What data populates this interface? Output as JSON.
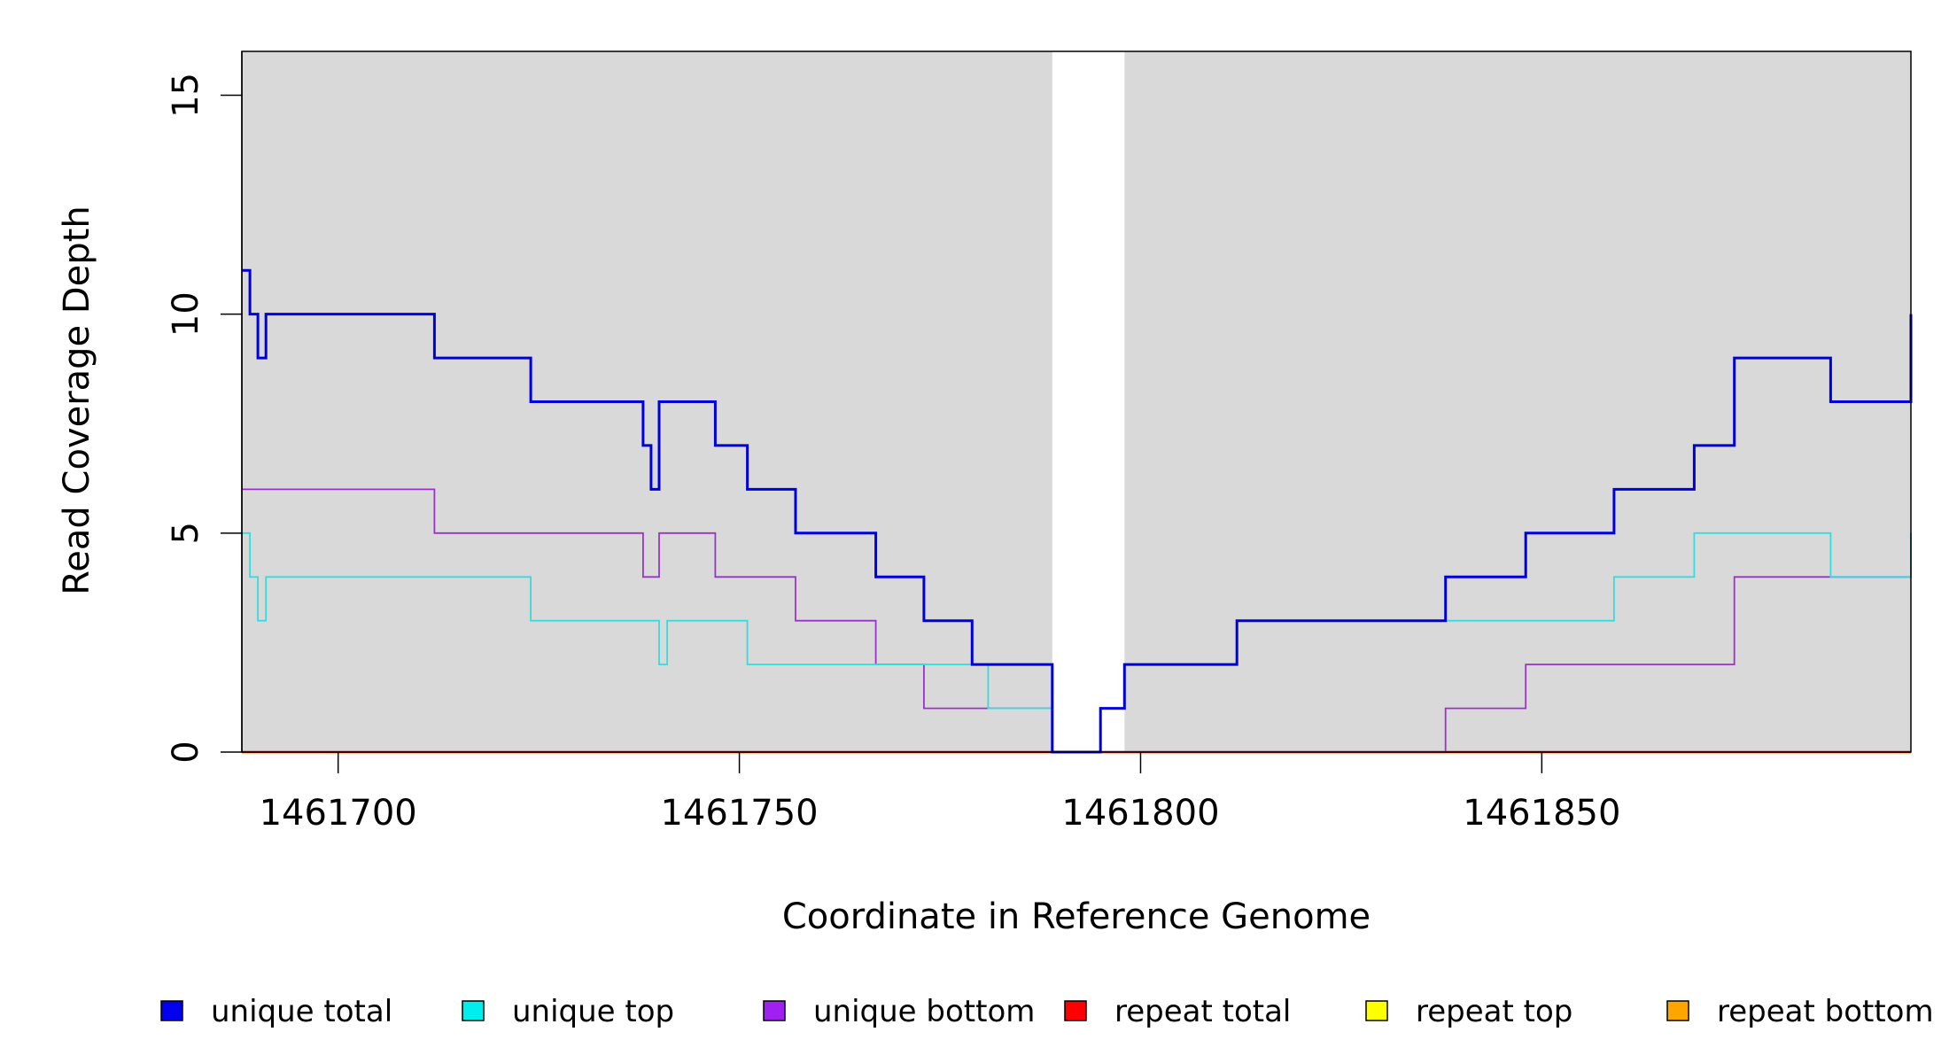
{
  "chart_data": {
    "type": "line",
    "title": "",
    "xlabel": "Coordinate in Reference Genome",
    "ylabel": "Read Coverage Depth",
    "xlim": [
      1461688,
      1461896
    ],
    "ylim": [
      0,
      16
    ],
    "x_ticks": [
      1461700,
      1461750,
      1461800,
      1461850
    ],
    "y_ticks": [
      0,
      5,
      10,
      15
    ],
    "x_tick_labels": [
      "1461700",
      "1461750",
      "1461800",
      "1461850"
    ],
    "y_tick_labels": [
      "0",
      "5",
      "10",
      "15"
    ],
    "background_color": "#d9d9d9",
    "gap_region": [
      1461789,
      1461798
    ],
    "series": [
      {
        "name": "unique total",
        "color": "#0000dd",
        "x": [
          1461688,
          1461689,
          1461690,
          1461691,
          1461712,
          1461724,
          1461738,
          1461739,
          1461740,
          1461747,
          1461751,
          1461757,
          1461767,
          1461773,
          1461779,
          1461789,
          1461795,
          1461798,
          1461812,
          1461838,
          1461848,
          1461859,
          1461869,
          1461874,
          1461886,
          1461896
        ],
        "values": [
          11,
          10,
          9,
          10,
          9,
          8,
          7,
          6,
          8,
          7,
          6,
          5,
          4,
          3,
          2,
          0,
          1,
          2,
          3,
          4,
          5,
          6,
          7,
          9,
          8,
          10
        ]
      },
      {
        "name": "unique top",
        "color": "#33dddd",
        "x": [
          1461688,
          1461689,
          1461690,
          1461691,
          1461724,
          1461740,
          1461741,
          1461751,
          1461781,
          1461789,
          1461795,
          1461798,
          1461812,
          1461859,
          1461869,
          1461886,
          1461896
        ],
        "values": [
          5,
          4,
          3,
          4,
          3,
          2,
          3,
          2,
          1,
          0,
          1,
          2,
          3,
          4,
          5,
          4,
          5
        ]
      },
      {
        "name": "unique bottom",
        "color": "#9933cc",
        "x": [
          1461688,
          1461712,
          1461738,
          1461740,
          1461747,
          1461757,
          1461767,
          1461773,
          1461789,
          1461838,
          1461848,
          1461874,
          1461896
        ],
        "values": [
          6,
          5,
          4,
          5,
          4,
          3,
          2,
          1,
          0,
          1,
          2,
          4,
          5
        ]
      },
      {
        "name": "repeat total",
        "color": "#ee0000",
        "x": [
          1461688,
          1461896
        ],
        "values": [
          0,
          0
        ]
      },
      {
        "name": "repeat top",
        "color": "#eeee00",
        "x": [
          1461688,
          1461896
        ],
        "values": [
          0,
          0
        ]
      },
      {
        "name": "repeat bottom",
        "color": "#ee8a00",
        "x": [
          1461688,
          1461896
        ],
        "values": [
          0,
          0
        ]
      }
    ],
    "legend": {
      "placement": "bottom",
      "entries": [
        {
          "label": "unique total",
          "color": "#0000ee"
        },
        {
          "label": "unique top",
          "color": "#00eeee"
        },
        {
          "label": "unique bottom",
          "color": "#a020f0"
        },
        {
          "label": "repeat total",
          "color": "#ff0000"
        },
        {
          "label": "repeat top",
          "color": "#ffff00"
        },
        {
          "label": "repeat bottom",
          "color": "#ffa500"
        }
      ]
    }
  }
}
